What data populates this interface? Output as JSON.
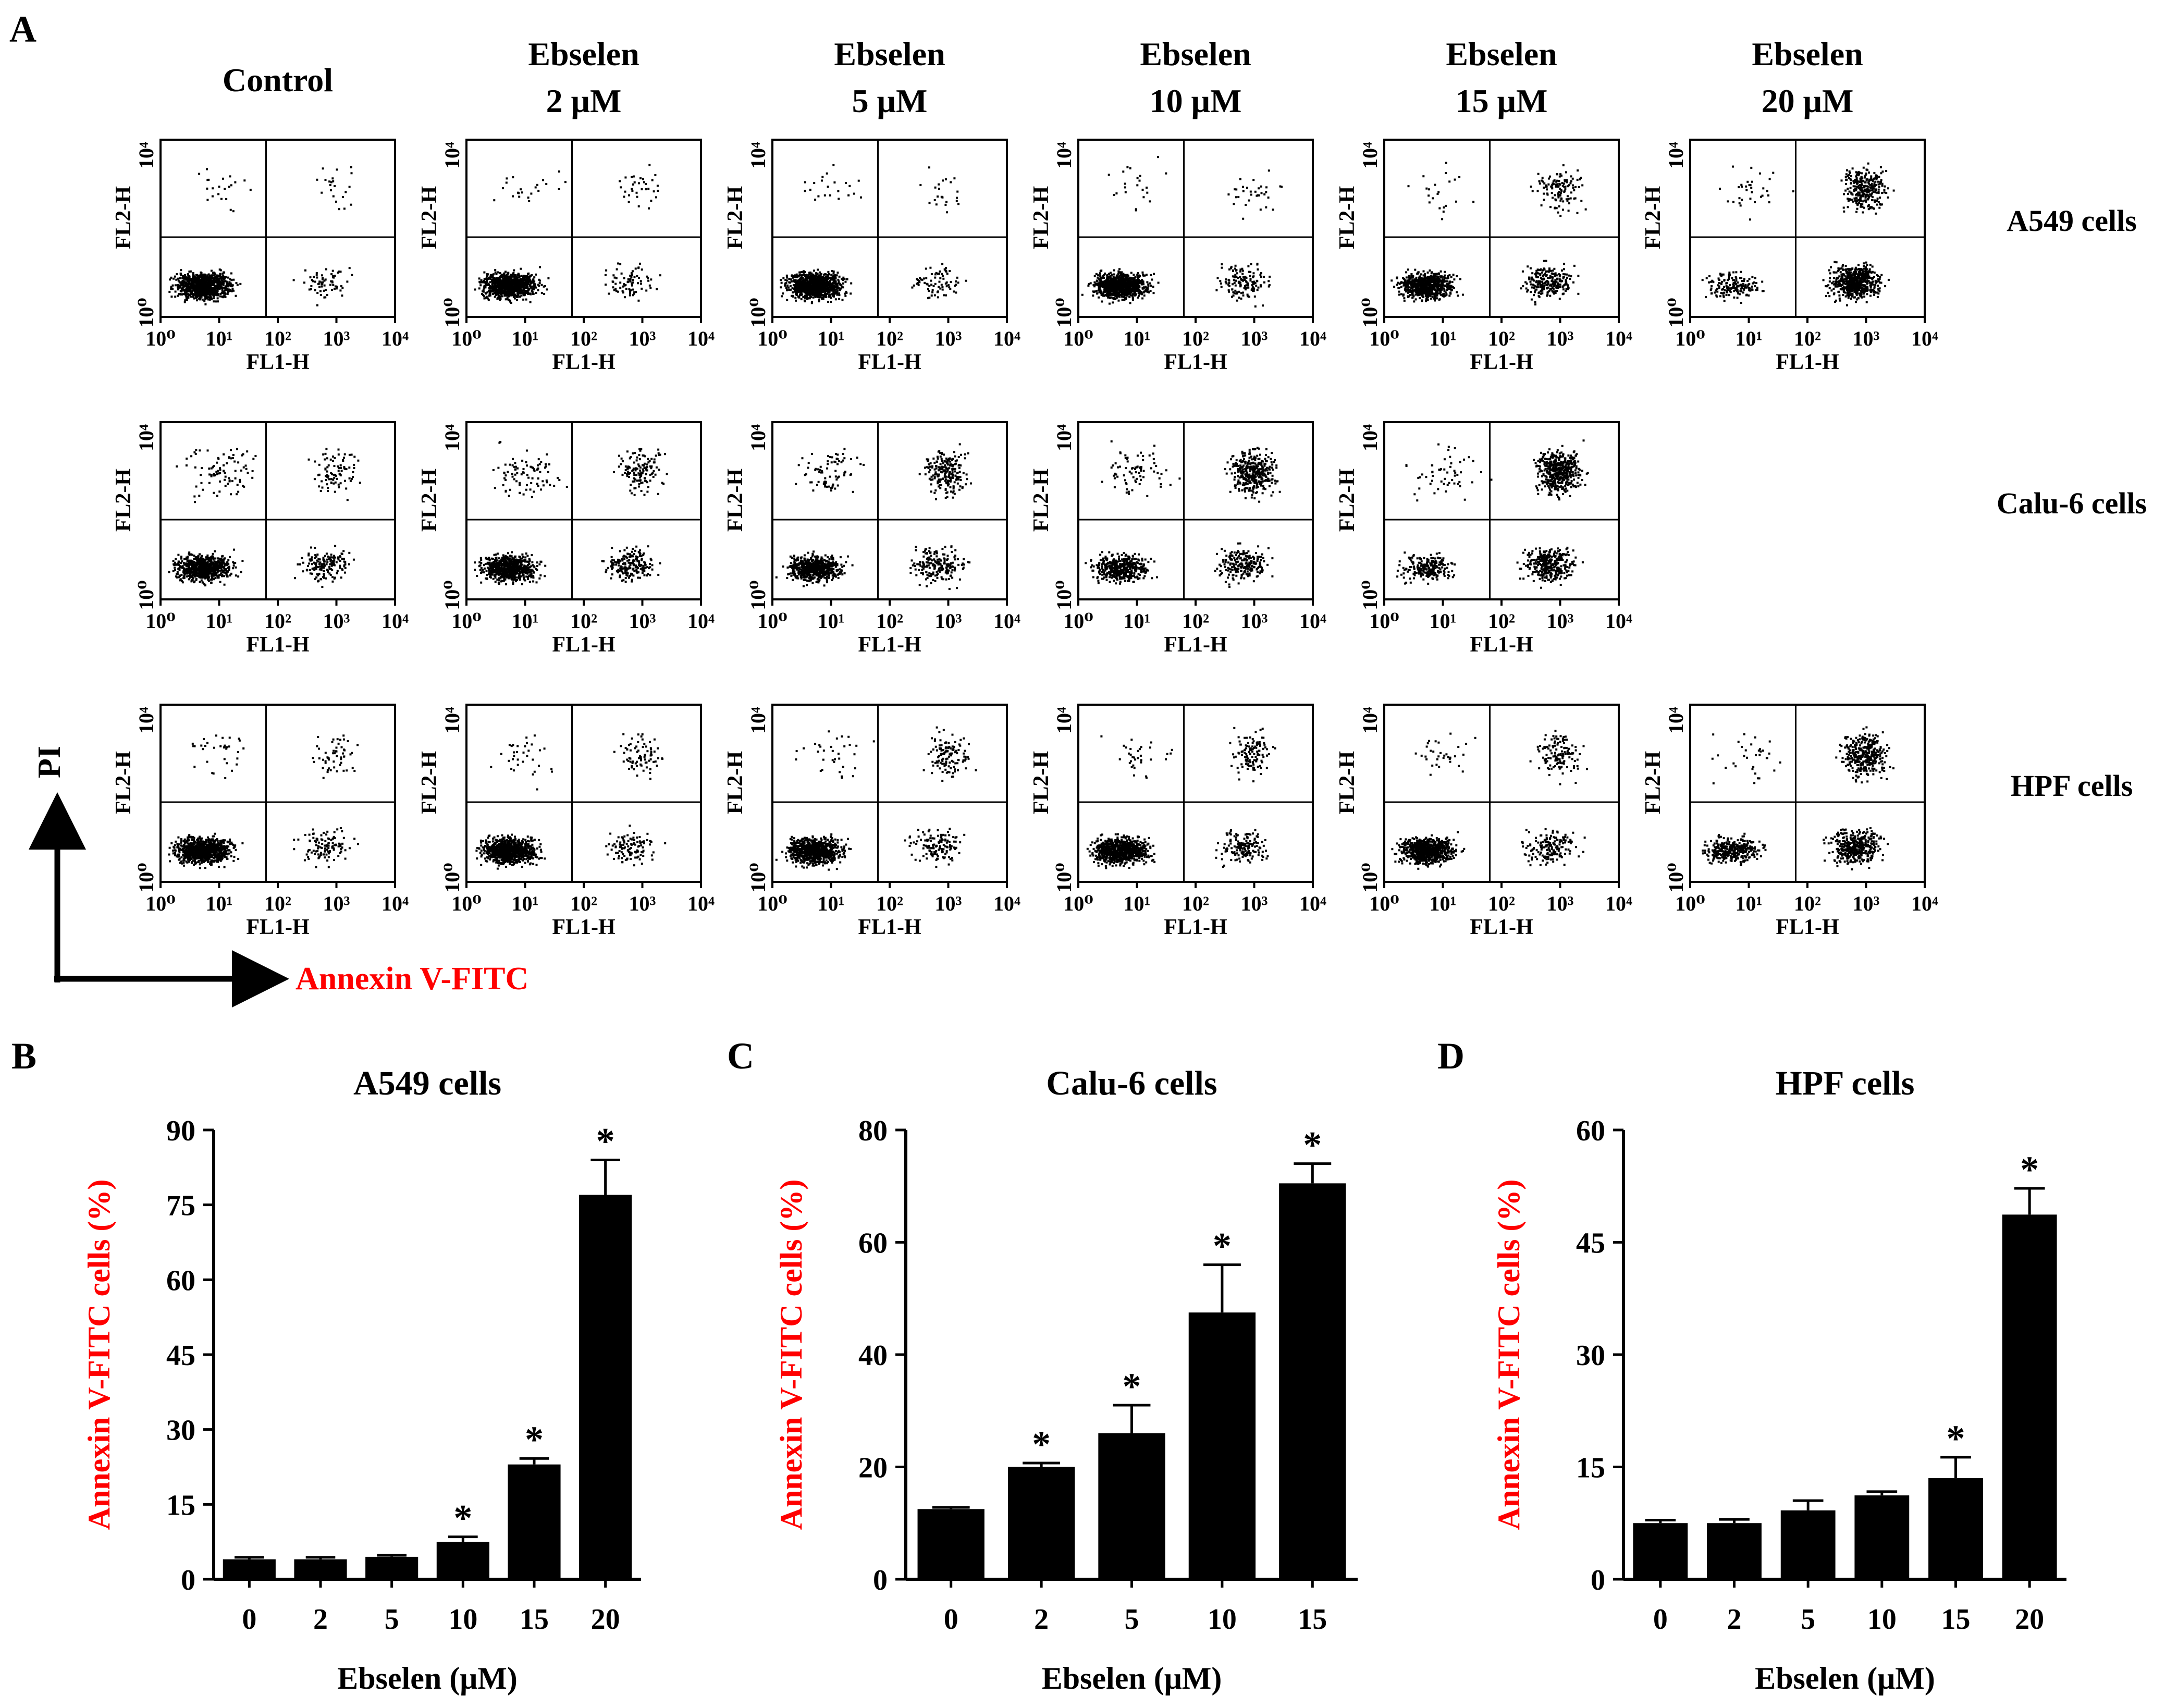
{
  "panel_letters": {
    "a": "A",
    "b": "B",
    "c": "C",
    "d": "D"
  },
  "colors": {
    "text": "#000000",
    "accent": "#ff0000",
    "bar": "#000000",
    "dots": "#000000"
  },
  "flow": {
    "column_labels": [
      [
        "Control",
        ""
      ],
      [
        "Ebselen",
        "2 μM"
      ],
      [
        "Ebselen",
        "5 μM"
      ],
      [
        "Ebselen",
        "10 μM"
      ],
      [
        "Ebselen",
        "15 μM"
      ],
      [
        "Ebselen",
        "20 μM"
      ]
    ],
    "row_labels": [
      "A549 cells",
      "Calu-6 cells",
      "HPF cells"
    ],
    "plot_x_label": "FL1-H",
    "plot_y_label": "FL2-H",
    "x_tick_labels": [
      "10⁰",
      "10¹",
      "10²",
      "10³",
      "10⁴"
    ],
    "y_tick_labels": [
      "10⁰",
      "10⁴"
    ],
    "gate_log_value": 1.8,
    "axis_y_title": "PI",
    "axis_x_title": "Annexin V-FITC",
    "plots": [
      {
        "row": 0,
        "col": 0,
        "ll": 0.9,
        "lr": 0.06,
        "ur": 0.02,
        "ul": 0.02
      },
      {
        "row": 0,
        "col": 1,
        "ll": 0.88,
        "lr": 0.07,
        "ur": 0.03,
        "ul": 0.02
      },
      {
        "row": 0,
        "col": 2,
        "ll": 0.89,
        "lr": 0.07,
        "ur": 0.02,
        "ul": 0.02
      },
      {
        "row": 0,
        "col": 3,
        "ll": 0.82,
        "lr": 0.13,
        "ur": 0.03,
        "ul": 0.02
      },
      {
        "row": 0,
        "col": 4,
        "ll": 0.65,
        "lr": 0.22,
        "ur": 0.11,
        "ul": 0.02
      },
      {
        "row": 0,
        "col": 5,
        "ll": 0.15,
        "lr": 0.55,
        "ur": 0.27,
        "ul": 0.03
      },
      {
        "row": 1,
        "col": 0,
        "ll": 0.7,
        "lr": 0.14,
        "ur": 0.08,
        "ul": 0.08
      },
      {
        "row": 1,
        "col": 1,
        "ll": 0.62,
        "lr": 0.18,
        "ur": 0.12,
        "ul": 0.08
      },
      {
        "row": 1,
        "col": 2,
        "ll": 0.55,
        "lr": 0.18,
        "ur": 0.2,
        "ul": 0.07
      },
      {
        "row": 1,
        "col": 3,
        "ll": 0.4,
        "lr": 0.2,
        "ur": 0.33,
        "ul": 0.07
      },
      {
        "row": 1,
        "col": 4,
        "ll": 0.2,
        "lr": 0.3,
        "ur": 0.45,
        "ul": 0.05
      },
      {
        "row": 2,
        "col": 0,
        "ll": 0.82,
        "lr": 0.1,
        "ur": 0.05,
        "ul": 0.03
      },
      {
        "row": 2,
        "col": 1,
        "ll": 0.8,
        "lr": 0.1,
        "ur": 0.07,
        "ul": 0.03
      },
      {
        "row": 2,
        "col": 2,
        "ll": 0.74,
        "lr": 0.12,
        "ur": 0.11,
        "ul": 0.03
      },
      {
        "row": 2,
        "col": 3,
        "ll": 0.72,
        "lr": 0.14,
        "ur": 0.11,
        "ul": 0.03
      },
      {
        "row": 2,
        "col": 4,
        "ll": 0.7,
        "lr": 0.15,
        "ur": 0.12,
        "ul": 0.03
      },
      {
        "row": 2,
        "col": 5,
        "ll": 0.3,
        "lr": 0.35,
        "ur": 0.32,
        "ul": 0.03
      }
    ]
  },
  "chart_data": [
    {
      "type": "bar",
      "title": "A549 cells",
      "xlabel": "Ebselen (μM)",
      "ylabel": "Annexin V-FITC cells (%)",
      "categories": [
        "0",
        "2",
        "5",
        "10",
        "15",
        "20"
      ],
      "values": [
        4,
        4,
        4.5,
        7.5,
        23,
        77
      ],
      "errors": [
        0.4,
        0.4,
        0.3,
        1,
        1.2,
        7
      ],
      "significant": [
        false,
        false,
        false,
        true,
        true,
        true
      ],
      "ylim": [
        0,
        90
      ],
      "yticks": [
        0,
        15,
        30,
        45,
        60,
        75,
        90
      ]
    },
    {
      "type": "bar",
      "title": "Calu-6 cells",
      "xlabel": "Ebselen (μM)",
      "ylabel": "Annexin V-FITC cells (%)",
      "categories": [
        "0",
        "2",
        "5",
        "10",
        "15"
      ],
      "values": [
        12.5,
        20,
        26,
        47.5,
        70.5
      ],
      "errors": [
        0.3,
        0.7,
        5,
        8.5,
        3.5
      ],
      "significant": [
        false,
        true,
        true,
        true,
        true
      ],
      "ylim": [
        0,
        80
      ],
      "yticks": [
        0,
        20,
        40,
        60,
        80
      ]
    },
    {
      "type": "bar",
      "title": "HPF cells",
      "xlabel": "Ebselen (μM)",
      "ylabel": "Annexin V-FITC cells (%)",
      "categories": [
        "0",
        "2",
        "5",
        "10",
        "15",
        "20"
      ],
      "values": [
        7.5,
        7.5,
        9.2,
        11.2,
        13.5,
        48.7
      ],
      "errors": [
        0.4,
        0.5,
        1.3,
        0.5,
        2.8,
        3.5
      ],
      "significant": [
        false,
        false,
        false,
        false,
        true,
        true
      ],
      "ylim": [
        0,
        60
      ],
      "yticks": [
        0,
        15,
        30,
        45,
        60
      ]
    }
  ],
  "significance_mark": "*"
}
